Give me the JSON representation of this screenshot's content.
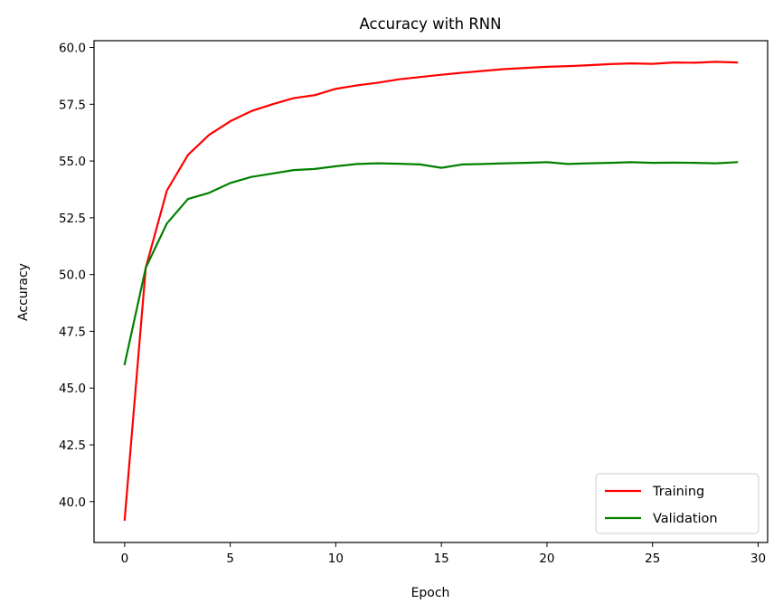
{
  "chart_data": {
    "type": "line",
    "title": "Accuracy with RNN",
    "xlabel": "Epoch",
    "ylabel": "Accuracy",
    "xlim": [
      -1.45,
      30.45
    ],
    "ylim": [
      38.2,
      60.3
    ],
    "xticks": [
      0,
      5,
      10,
      15,
      20,
      25,
      30
    ],
    "xtick_labels": [
      "0",
      "5",
      "10",
      "15",
      "20",
      "25",
      "30"
    ],
    "yticks": [
      40.0,
      42.5,
      45.0,
      47.5,
      50.0,
      52.5,
      55.0,
      57.5,
      60.0
    ],
    "ytick_labels": [
      "40.0",
      "42.5",
      "45.0",
      "47.5",
      "50.0",
      "52.5",
      "55.0",
      "57.5",
      "60.0"
    ],
    "grid": false,
    "legend_position": "lower-right",
    "x": [
      0,
      1,
      2,
      3,
      4,
      5,
      6,
      7,
      8,
      9,
      10,
      11,
      12,
      13,
      14,
      15,
      16,
      17,
      18,
      19,
      20,
      21,
      22,
      23,
      24,
      25,
      26,
      27,
      28,
      29
    ],
    "series": [
      {
        "name": "Training",
        "color": "#ff0000",
        "values": [
          39.2,
          50.3,
          53.7,
          55.27,
          56.15,
          56.75,
          57.2,
          57.5,
          57.77,
          57.9,
          58.18,
          58.33,
          58.45,
          58.6,
          58.7,
          58.8,
          58.89,
          58.97,
          59.05,
          59.1,
          59.15,
          59.18,
          59.22,
          59.27,
          59.3,
          59.28,
          59.34,
          59.33,
          59.37,
          59.34
        ]
      },
      {
        "name": "Validation",
        "color": "#008000",
        "values": [
          46.05,
          50.3,
          52.25,
          53.33,
          53.6,
          54.03,
          54.3,
          54.45,
          54.6,
          54.65,
          54.77,
          54.87,
          54.9,
          54.88,
          54.85,
          54.7,
          54.85,
          54.87,
          54.9,
          54.92,
          54.95,
          54.87,
          54.9,
          54.92,
          54.95,
          54.92,
          54.93,
          54.92,
          54.9,
          54.95
        ]
      }
    ]
  }
}
